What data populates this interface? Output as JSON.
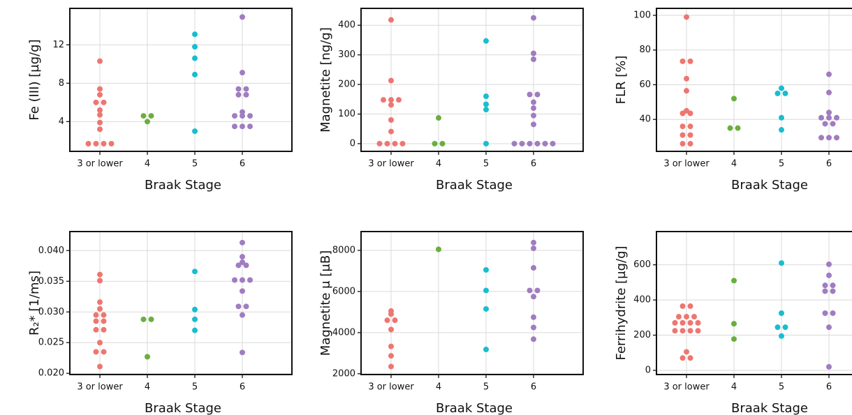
{
  "chart_data": [
    {
      "type": "swarm",
      "xlabel": "Braak Stage",
      "ylabel": "Fe (III) [µg/g]",
      "categories": [
        "3 or lower",
        "4",
        "5",
        "6"
      ],
      "colors": [
        "#ee7670",
        "#6aaf3d",
        "#17becf",
        "#a07cc0"
      ],
      "values": [
        [
          10.3,
          7.4,
          6.8,
          6.0,
          6.0,
          5.2,
          4.7,
          3.9,
          3.2,
          1.7,
          1.7,
          1.7,
          1.7
        ],
        [
          4.6,
          4.6,
          4.0
        ],
        [
          13.1,
          11.8,
          10.6,
          8.9,
          3.0
        ],
        [
          14.9,
          9.1,
          7.4,
          7.4,
          6.8,
          6.8,
          5.0,
          4.6,
          4.6,
          4.6,
          3.5,
          3.5,
          3.5
        ]
      ],
      "ylim": [
        0.9,
        15.8
      ],
      "yticks": [
        4,
        8,
        12
      ],
      "grid": true
    },
    {
      "type": "swarm",
      "xlabel": "Braak Stage",
      "ylabel": "Magnetite [ng/g]",
      "categories": [
        "3 or lower",
        "4",
        "5",
        "6"
      ],
      "colors": [
        "#ee7670",
        "#6aaf3d",
        "#17becf",
        "#a07cc0"
      ],
      "values": [
        [
          418,
          213,
          148,
          148,
          148,
          131,
          80,
          41,
          0,
          0,
          0,
          0
        ],
        [
          87,
          0,
          0
        ],
        [
          347,
          160,
          133,
          115,
          0
        ],
        [
          425,
          305,
          285,
          166,
          166,
          140,
          120,
          95,
          65,
          0,
          0,
          0,
          0,
          0,
          0
        ]
      ],
      "ylim": [
        -26,
        457
      ],
      "yticks": [
        0,
        100,
        200,
        300,
        400
      ],
      "grid": true
    },
    {
      "type": "swarm",
      "xlabel": "Braak Stage",
      "ylabel": "FLR [%]",
      "categories": [
        "3 or lower",
        "4",
        "5",
        "6"
      ],
      "colors": [
        "#ee7670",
        "#6aaf3d",
        "#17becf",
        "#a07cc0"
      ],
      "values": [
        [
          99,
          73.5,
          73.5,
          63.5,
          56.5,
          45,
          43.5,
          43.5,
          36,
          36,
          31,
          31,
          26,
          26
        ],
        [
          52,
          35,
          35
        ],
        [
          58,
          55,
          55,
          41,
          34
        ],
        [
          66,
          55.5,
          44,
          41,
          41,
          41,
          37.5,
          37.5,
          29.5,
          29.5,
          29.5
        ]
      ],
      "ylim": [
        21.6,
        104
      ],
      "yticks": [
        40,
        60,
        80,
        100
      ],
      "grid": true
    },
    {
      "type": "swarm",
      "xlabel": "Braak Stage",
      "ylabel": "R₂* [1/ms]",
      "categories": [
        "3 or lower",
        "4",
        "5",
        "6"
      ],
      "colors": [
        "#ee7670",
        "#6aaf3d",
        "#17becf",
        "#a07cc0"
      ],
      "values": [
        [
          0.0361,
          0.0351,
          0.0316,
          0.0305,
          0.0295,
          0.0295,
          0.0285,
          0.0285,
          0.0271,
          0.0271,
          0.025,
          0.0235,
          0.0235,
          0.0211
        ],
        [
          0.0288,
          0.0288,
          0.0227
        ],
        [
          0.0366,
          0.0304,
          0.0288,
          0.027
        ],
        [
          0.0413,
          0.039,
          0.0381,
          0.0376,
          0.0376,
          0.0352,
          0.0352,
          0.0352,
          0.0334,
          0.0309,
          0.0309,
          0.0295,
          0.0234
        ]
      ],
      "ylim": [
        0.0198,
        0.0431
      ],
      "yticks": [
        {
          "value": 0.02,
          "label": "0.020"
        },
        0.025,
        {
          "value": 0.03,
          "label": "0.030"
        },
        0.035,
        {
          "value": 0.04,
          "label": "0.040"
        }
      ],
      "grid": true
    },
    {
      "type": "swarm",
      "xlabel": "Braak Stage",
      "ylabel": "Magnetite μ [μB]",
      "categories": [
        "3 or lower",
        "4",
        "5",
        "6"
      ],
      "colors": [
        "#ee7670",
        "#6aaf3d",
        "#17becf",
        "#a07cc0"
      ],
      "values": [
        [
          5050,
          4900,
          4600,
          4600,
          4150,
          3330,
          2870,
          2350
        ],
        [
          8050
        ],
        [
          7050,
          6050,
          5150,
          3180
        ],
        [
          8380,
          8100,
          7150,
          6050,
          6050,
          5750,
          4750,
          4250,
          3680
        ]
      ],
      "ylim": [
        1960,
        8915
      ],
      "yticks": [
        2000,
        4000,
        6000,
        8000
      ],
      "grid": true
    },
    {
      "type": "swarm",
      "xlabel": "Braak Stage",
      "ylabel": "Ferrihydrite [µg/g]",
      "categories": [
        "3 or lower",
        "4",
        "5",
        "6"
      ],
      "colors": [
        "#ee7670",
        "#6aaf3d",
        "#17becf",
        "#a07cc0"
      ],
      "values": [
        [
          365,
          365,
          305,
          305,
          305,
          270,
          270,
          270,
          270,
          225,
          225,
          225,
          225,
          105,
          70,
          70
        ],
        [
          510,
          265,
          178
        ],
        [
          610,
          325,
          245,
          245,
          195
        ],
        [
          603,
          540,
          483,
          483,
          450,
          450,
          325,
          325,
          245,
          20
        ]
      ],
      "ylim": [
        -24,
        789
      ],
      "yticks": [
        0,
        200,
        400,
        600
      ],
      "grid": true
    }
  ]
}
